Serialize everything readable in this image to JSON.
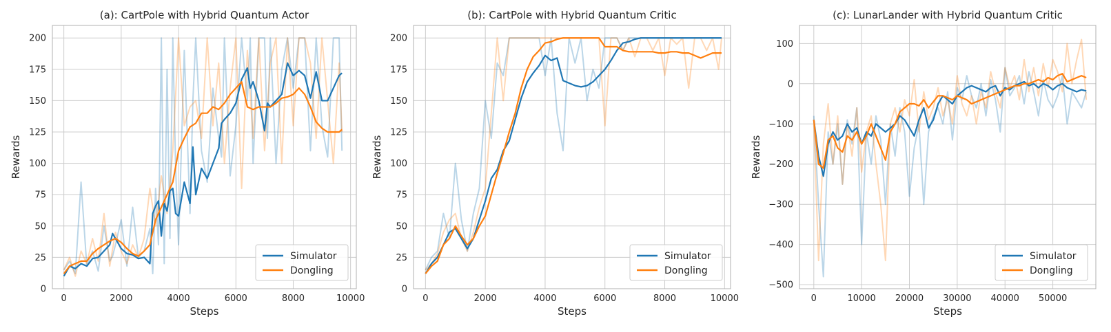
{
  "colors": {
    "simulator": "#1f77b4",
    "dongling": "#ff7f0e",
    "grid": "#cccccc",
    "frame": "#b0b0b0"
  },
  "chart_data": [
    {
      "type": "line",
      "title": "(a): CartPole with Hybrid Quantum Actor",
      "xlabel": "Steps",
      "ylabel": "Rewards",
      "xlim": [
        -400,
        10200
      ],
      "ylim": [
        0,
        210
      ],
      "xticks": [
        0,
        2000,
        4000,
        6000,
        8000,
        10000
      ],
      "yticks": [
        0,
        25,
        50,
        75,
        100,
        125,
        150,
        175,
        200
      ],
      "grid": true,
      "legend": "bottom-right",
      "series": [
        {
          "name": "Simulator",
          "color": "#1f77b4",
          "x": [
            0,
            200,
            400,
            600,
            800,
            1000,
            1200,
            1400,
            1600,
            1700,
            1800,
            2000,
            2200,
            2400,
            2600,
            2800,
            3000,
            3100,
            3200,
            3300,
            3400,
            3500,
            3600,
            3700,
            3800,
            3900,
            4000,
            4200,
            4400,
            4500,
            4600,
            4800,
            5000,
            5200,
            5400,
            5500,
            5600,
            5800,
            6000,
            6200,
            6400,
            6500,
            6600,
            6800,
            7000,
            7100,
            7200,
            7400,
            7600,
            7800,
            8000,
            8200,
            8400,
            8600,
            8800,
            9000,
            9200,
            9400,
            9600,
            9700
          ],
          "y": [
            10,
            18,
            16,
            20,
            18,
            24,
            25,
            30,
            35,
            44,
            40,
            32,
            28,
            27,
            24,
            25,
            20,
            60,
            66,
            70,
            42,
            68,
            62,
            78,
            80,
            60,
            58,
            85,
            68,
            113,
            75,
            96,
            88,
            100,
            112,
            132,
            135,
            140,
            148,
            167,
            176,
            160,
            165,
            150,
            126,
            148,
            145,
            150,
            155,
            180,
            170,
            174,
            170,
            152,
            173,
            150,
            150,
            160,
            170,
            172
          ],
          "raw_y": [
            15,
            22,
            12,
            85,
            18,
            30,
            14,
            50,
            22,
            26,
            35,
            55,
            18,
            65,
            25,
            30,
            48,
            12,
            80,
            35,
            200,
            20,
            175,
            40,
            200,
            95,
            35,
            190,
            60,
            150,
            200,
            110,
            85,
            160,
            120,
            105,
            200,
            90,
            130,
            200,
            150,
            200,
            100,
            200,
            200,
            120,
            200,
            100,
            175,
            200,
            160,
            200,
            200,
            110,
            200,
            130,
            105,
            200,
            200,
            110
          ]
        },
        {
          "name": "Dongling",
          "color": "#ff7f0e",
          "x": [
            0,
            200,
            400,
            600,
            800,
            1000,
            1200,
            1400,
            1600,
            1800,
            2000,
            2200,
            2400,
            2600,
            2800,
            3000,
            3200,
            3400,
            3600,
            3800,
            4000,
            4200,
            4400,
            4600,
            4800,
            5000,
            5200,
            5400,
            5600,
            5800,
            6000,
            6200,
            6400,
            6600,
            6800,
            7000,
            7200,
            7400,
            7600,
            7800,
            8000,
            8200,
            8400,
            8600,
            8800,
            9000,
            9200,
            9400,
            9600,
            9700
          ],
          "y": [
            12,
            18,
            20,
            22,
            22,
            28,
            32,
            35,
            38,
            40,
            37,
            32,
            28,
            26,
            30,
            35,
            55,
            65,
            75,
            85,
            110,
            120,
            129,
            132,
            140,
            140,
            145,
            143,
            148,
            155,
            160,
            165,
            145,
            143,
            145,
            145,
            145,
            148,
            152,
            153,
            155,
            160,
            155,
            145,
            133,
            128,
            125,
            125,
            125,
            127
          ],
          "raw_y": [
            15,
            25,
            10,
            30,
            20,
            40,
            22,
            60,
            18,
            45,
            30,
            20,
            35,
            25,
            40,
            80,
            50,
            90,
            60,
            110,
            200,
            130,
            145,
            150,
            120,
            200,
            130,
            180,
            100,
            160,
            200,
            80,
            190,
            120,
            200,
            110,
            180,
            200,
            100,
            200,
            130,
            200,
            200,
            180,
            120,
            200,
            150,
            100,
            180,
            125
          ]
        }
      ]
    },
    {
      "type": "line",
      "title": "(b): CartPole with Hybrid Quantum Critic",
      "xlabel": "Steps",
      "ylabel": "Rewards",
      "xlim": [
        -400,
        10200
      ],
      "ylim": [
        0,
        210
      ],
      "xticks": [
        0,
        2000,
        4000,
        6000,
        8000,
        10000
      ],
      "yticks": [
        0,
        25,
        50,
        75,
        100,
        125,
        150,
        175,
        200
      ],
      "grid": true,
      "legend": "bottom-right",
      "series": [
        {
          "name": "Simulator",
          "color": "#1f77b4",
          "x": [
            0,
            200,
            400,
            600,
            800,
            1000,
            1200,
            1400,
            1600,
            1800,
            2000,
            2200,
            2400,
            2600,
            2800,
            3000,
            3200,
            3400,
            3600,
            3800,
            4000,
            4200,
            4400,
            4600,
            4800,
            5000,
            5200,
            5400,
            5600,
            5800,
            6000,
            6200,
            6400,
            6600,
            6800,
            7000,
            7200,
            7400,
            7600,
            7800,
            8000,
            8200,
            8400,
            8600,
            8800,
            9000,
            9200,
            9400,
            9600,
            9800,
            9900
          ],
          "y": [
            12,
            20,
            25,
            35,
            45,
            48,
            40,
            32,
            40,
            55,
            70,
            88,
            95,
            110,
            118,
            135,
            152,
            165,
            172,
            178,
            186,
            182,
            184,
            166,
            164,
            162,
            161,
            162,
            165,
            170,
            175,
            182,
            190,
            196,
            197,
            199,
            200,
            200,
            200,
            200,
            200,
            200,
            200,
            200,
            200,
            200,
            200,
            200,
            200,
            200,
            200
          ],
          "raw_y": [
            15,
            25,
            30,
            60,
            40,
            100,
            55,
            30,
            60,
            80,
            150,
            120,
            180,
            170,
            200,
            200,
            200,
            200,
            200,
            200,
            170,
            200,
            140,
            110,
            200,
            180,
            200,
            150,
            175,
            160,
            200,
            200,
            200,
            190,
            200,
            200,
            200,
            200,
            200,
            200,
            200,
            200,
            200,
            200,
            200,
            200,
            200,
            200,
            200,
            200,
            200
          ]
        },
        {
          "name": "Dongling",
          "color": "#ff7f0e",
          "x": [
            0,
            200,
            400,
            600,
            800,
            1000,
            1200,
            1400,
            1600,
            1800,
            2000,
            2200,
            2400,
            2600,
            2800,
            3000,
            3200,
            3400,
            3600,
            3800,
            4000,
            4200,
            4400,
            4600,
            4800,
            5000,
            5200,
            5400,
            5600,
            5800,
            6000,
            6200,
            6400,
            6600,
            6800,
            7000,
            7200,
            7400,
            7600,
            7800,
            8000,
            8200,
            8400,
            8600,
            8800,
            9000,
            9200,
            9400,
            9600,
            9800,
            9900
          ],
          "y": [
            12,
            18,
            22,
            35,
            40,
            50,
            42,
            35,
            40,
            50,
            58,
            75,
            92,
            108,
            125,
            140,
            160,
            175,
            185,
            190,
            196,
            197,
            199,
            200,
            200,
            200,
            200,
            200,
            200,
            200,
            193,
            193,
            193,
            190,
            189,
            189,
            189,
            189,
            189,
            188,
            188,
            189,
            189,
            188,
            188,
            186,
            184,
            186,
            188,
            188,
            188
          ],
          "raw_y": [
            15,
            20,
            28,
            45,
            55,
            60,
            40,
            30,
            45,
            65,
            80,
            140,
            200,
            150,
            200,
            200,
            200,
            200,
            200,
            200,
            200,
            200,
            200,
            200,
            200,
            200,
            200,
            200,
            200,
            200,
            130,
            200,
            200,
            190,
            200,
            185,
            200,
            200,
            190,
            200,
            170,
            200,
            195,
            200,
            160,
            200,
            200,
            190,
            200,
            175,
            200
          ]
        }
      ]
    },
    {
      "type": "line",
      "title": "(c): LunarLander with Hybrid Quantum Critic",
      "xlabel": "Steps",
      "ylabel": "Rewards",
      "xlim": [
        -3000,
        59000
      ],
      "ylim": [
        -510,
        145
      ],
      "xticks": [
        0,
        10000,
        20000,
        30000,
        40000,
        50000
      ],
      "yticks": [
        -500,
        -400,
        -300,
        -200,
        -100,
        0,
        100
      ],
      "grid": true,
      "legend": "bottom-right",
      "series": [
        {
          "name": "Simulator",
          "color": "#1f77b4",
          "x": [
            0,
            1000,
            2000,
            3000,
            4000,
            5000,
            6000,
            7000,
            8000,
            9000,
            10000,
            11000,
            12000,
            13000,
            14000,
            15000,
            16000,
            17000,
            18000,
            19000,
            20000,
            21000,
            22000,
            23000,
            24000,
            25000,
            26000,
            27000,
            28000,
            29000,
            30000,
            31000,
            32000,
            33000,
            34000,
            35000,
            36000,
            37000,
            38000,
            39000,
            40000,
            41000,
            42000,
            43000,
            44000,
            45000,
            46000,
            47000,
            48000,
            49000,
            50000,
            51000,
            52000,
            53000,
            54000,
            55000,
            56000,
            57000
          ],
          "y": [
            -90,
            -180,
            -230,
            -150,
            -120,
            -140,
            -130,
            -100,
            -120,
            -110,
            -150,
            -120,
            -130,
            -100,
            -110,
            -120,
            -110,
            -100,
            -80,
            -90,
            -110,
            -130,
            -90,
            -60,
            -110,
            -90,
            -50,
            -30,
            -40,
            -50,
            -30,
            -20,
            -10,
            -5,
            -10,
            -15,
            -20,
            -10,
            -5,
            -30,
            -10,
            -15,
            -5,
            0,
            5,
            -5,
            0,
            -10,
            0,
            -5,
            -15,
            -5,
            0,
            -10,
            -15,
            -20,
            -15,
            -18
          ],
          "raw_y": [
            -80,
            -300,
            -480,
            -120,
            -200,
            -100,
            -250,
            -90,
            -150,
            -60,
            -400,
            -120,
            -200,
            -80,
            -140,
            -300,
            -100,
            -180,
            -60,
            -120,
            -280,
            -160,
            -100,
            -300,
            -120,
            -80,
            -60,
            -100,
            -20,
            -140,
            -10,
            -40,
            20,
            -30,
            -60,
            0,
            -80,
            10,
            -40,
            -120,
            40,
            -30,
            -10,
            20,
            -50,
            30,
            -20,
            -80,
            10,
            -40,
            -60,
            -30,
            20,
            -100,
            -20,
            -40,
            -60,
            -20
          ]
        },
        {
          "name": "Dongling",
          "color": "#ff7f0e",
          "x": [
            0,
            1000,
            2000,
            3000,
            4000,
            5000,
            6000,
            7000,
            8000,
            9000,
            10000,
            11000,
            12000,
            13000,
            14000,
            15000,
            16000,
            17000,
            18000,
            19000,
            20000,
            21000,
            22000,
            23000,
            24000,
            25000,
            26000,
            27000,
            28000,
            29000,
            30000,
            31000,
            32000,
            33000,
            34000,
            35000,
            36000,
            37000,
            38000,
            39000,
            40000,
            41000,
            42000,
            43000,
            44000,
            45000,
            46000,
            47000,
            48000,
            49000,
            50000,
            51000,
            52000,
            53000,
            54000,
            55000,
            56000,
            57000
          ],
          "y": [
            -90,
            -200,
            -210,
            -140,
            -130,
            -160,
            -170,
            -130,
            -140,
            -120,
            -150,
            -130,
            -100,
            -130,
            -160,
            -190,
            -120,
            -100,
            -70,
            -60,
            -50,
            -50,
            -55,
            -40,
            -60,
            -45,
            -30,
            -30,
            -35,
            -40,
            -30,
            -35,
            -40,
            -50,
            -45,
            -40,
            -35,
            -30,
            -25,
            -20,
            -15,
            -10,
            -5,
            -5,
            0,
            0,
            5,
            10,
            5,
            15,
            10,
            20,
            25,
            5,
            10,
            15,
            20,
            15
          ],
          "raw_y": [
            -100,
            -440,
            -150,
            -50,
            -200,
            -80,
            -250,
            -100,
            -180,
            -60,
            -220,
            -120,
            -80,
            -200,
            -300,
            -440,
            -100,
            -60,
            -120,
            -40,
            -80,
            10,
            -120,
            -20,
            -90,
            -60,
            -10,
            -80,
            -40,
            -100,
            20,
            -50,
            -80,
            -30,
            -100,
            -20,
            -60,
            30,
            -20,
            -60,
            40,
            -10,
            20,
            -40,
            60,
            -20,
            40,
            -30,
            50,
            -10,
            60,
            30,
            -20,
            100,
            0,
            60,
            110,
            -40
          ]
        }
      ]
    }
  ]
}
